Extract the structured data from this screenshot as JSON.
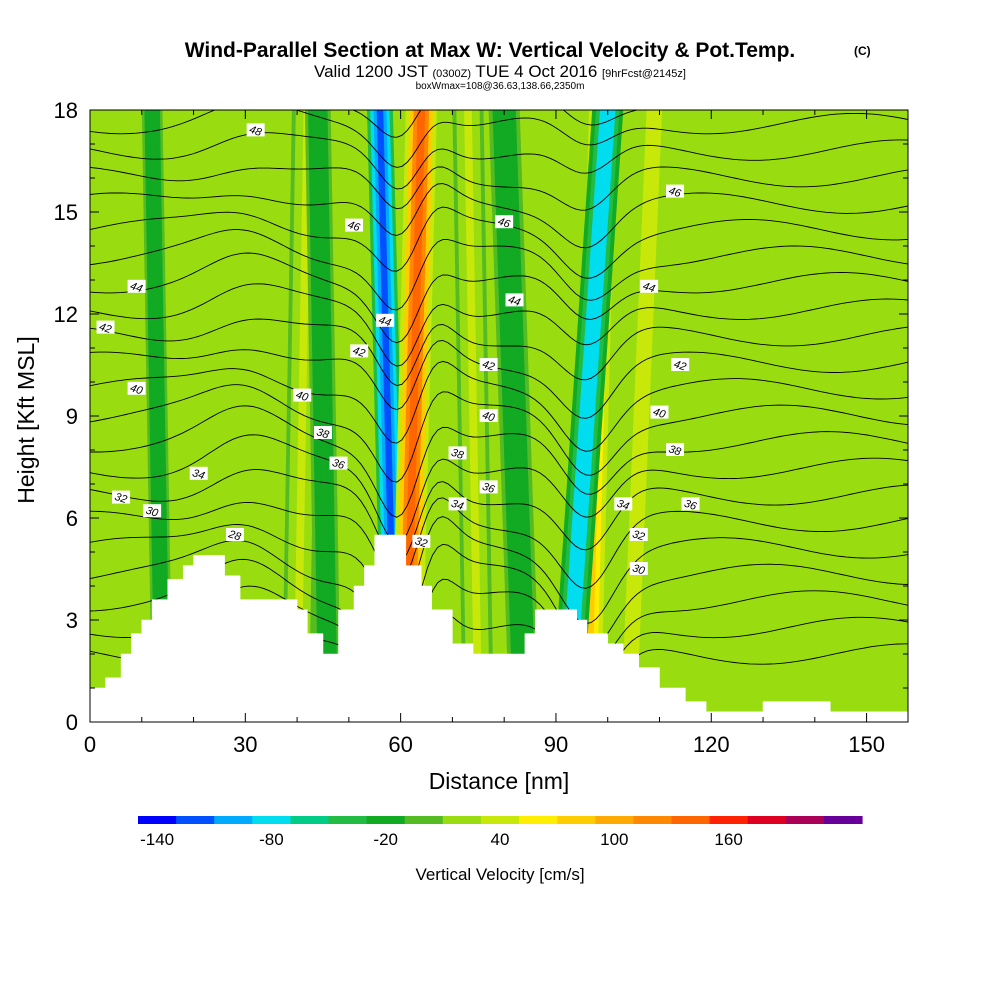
{
  "chart_data": {
    "type": "heatmap",
    "title": "Wind-Parallel Section at Max W: Vertical Velocity & Pot.Temp.",
    "title_mark": "(C)",
    "subtitle_parts": [
      "Valid 1200 JST",
      "(0300Z)",
      "TUE 4 Oct 2016",
      "[9hrFcst@2145z]"
    ],
    "subtitle2": "boxWmax=108@36.63,138.66,2350m",
    "xlabel": "Distance [nm]",
    "ylabel": "Height [Kft MSL]",
    "xlim": [
      0,
      158
    ],
    "ylim": [
      0,
      18
    ],
    "x_ticks": [
      0,
      30,
      60,
      90,
      120,
      150
    ],
    "x_tick_labels": [
      "0",
      "30",
      "60",
      "90",
      "120",
      "150"
    ],
    "y_ticks": [
      0,
      3,
      6,
      9,
      12,
      15,
      18
    ],
    "y_tick_labels": [
      "0",
      "3",
      "6",
      "9",
      "12",
      "15",
      "18"
    ],
    "colorbar": {
      "title": "Vertical Velocity [cm/s]",
      "min": -150,
      "step": 20,
      "colors": [
        "#0000ff",
        "#0050ff",
        "#00aaff",
        "#00ddee",
        "#00cc88",
        "#22bb44",
        "#11aa22",
        "#55bb22",
        "#99dd11",
        "#c8e80a",
        "#ffee00",
        "#ffcc00",
        "#ffaa00",
        "#ff8800",
        "#ff6600",
        "#ff2200",
        "#dd0022",
        "#aa0055",
        "#660099"
      ],
      "tick_values": [
        -140,
        -80,
        -20,
        40,
        100,
        160
      ],
      "tick_labels": [
        "-140",
        "-80",
        "-20",
        "40",
        "100",
        "160"
      ]
    },
    "vertical_velocity_bands": [
      {
        "x_bottom": 59,
        "x_top": 56,
        "width": 2.5,
        "value": -130
      },
      {
        "x_bottom": 61,
        "x_top": 64,
        "width": 3,
        "value": 140
      },
      {
        "x_bottom": 96,
        "x_top": 99,
        "width": 3.5,
        "value": 70
      },
      {
        "x_bottom": 92,
        "x_top": 100,
        "width": 3,
        "value": -90
      },
      {
        "x_bottom": 40,
        "x_top": 42,
        "width": 3,
        "value": 30
      },
      {
        "x_bottom": 46,
        "x_top": 44,
        "width": 2.5,
        "value": -25
      },
      {
        "x_bottom": 14,
        "x_top": 12,
        "width": 2,
        "value": -25
      },
      {
        "x_bottom": 75,
        "x_top": 73,
        "width": 3,
        "value": 30
      },
      {
        "x_bottom": 104,
        "x_top": 109,
        "width": 3,
        "value": 45
      },
      {
        "x_bottom": 84,
        "x_top": 80,
        "width": 3,
        "value": -20
      }
    ],
    "terrain": [
      [
        0,
        1.0
      ],
      [
        3,
        1.0
      ],
      [
        3,
        1.3
      ],
      [
        6,
        1.3
      ],
      [
        6,
        2.0
      ],
      [
        8,
        2.0
      ],
      [
        8,
        2.6
      ],
      [
        10,
        2.6
      ],
      [
        10,
        3.0
      ],
      [
        12,
        3.0
      ],
      [
        12,
        3.6
      ],
      [
        15,
        3.6
      ],
      [
        15,
        4.2
      ],
      [
        18,
        4.2
      ],
      [
        18,
        4.6
      ],
      [
        20,
        4.6
      ],
      [
        20,
        4.9
      ],
      [
        26,
        4.9
      ],
      [
        26,
        4.3
      ],
      [
        29,
        4.3
      ],
      [
        29,
        3.6
      ],
      [
        40,
        3.6
      ],
      [
        40,
        3.3
      ],
      [
        42,
        3.3
      ],
      [
        42,
        2.6
      ],
      [
        45,
        2.6
      ],
      [
        45,
        2.0
      ],
      [
        48,
        2.0
      ],
      [
        48,
        3.3
      ],
      [
        51,
        3.3
      ],
      [
        51,
        4.0
      ],
      [
        53,
        4.0
      ],
      [
        53,
        4.6
      ],
      [
        55,
        4.6
      ],
      [
        55,
        5.5
      ],
      [
        61,
        5.5
      ],
      [
        61,
        4.6
      ],
      [
        64,
        4.6
      ],
      [
        64,
        4.0
      ],
      [
        66,
        4.0
      ],
      [
        66,
        3.3
      ],
      [
        70,
        3.3
      ],
      [
        70,
        2.3
      ],
      [
        74,
        2.3
      ],
      [
        74,
        2.0
      ],
      [
        84,
        2.0
      ],
      [
        84,
        2.6
      ],
      [
        86,
        2.6
      ],
      [
        86,
        3.3
      ],
      [
        94,
        3.3
      ],
      [
        94,
        3.0
      ],
      [
        96,
        3.0
      ],
      [
        96,
        2.6
      ],
      [
        100,
        2.6
      ],
      [
        100,
        2.3
      ],
      [
        103,
        2.3
      ],
      [
        103,
        2.0
      ],
      [
        106,
        2.0
      ],
      [
        106,
        1.6
      ],
      [
        110,
        1.6
      ],
      [
        110,
        1.0
      ],
      [
        115,
        1.0
      ],
      [
        115,
        0.6
      ],
      [
        119,
        0.6
      ],
      [
        119,
        0.3
      ],
      [
        130,
        0.3
      ],
      [
        130,
        0.6
      ],
      [
        143,
        0.6
      ],
      [
        143,
        0.3
      ],
      [
        158,
        0.3
      ]
    ],
    "isentropes": [
      28,
      29,
      30,
      31,
      32,
      33,
      34,
      35,
      36,
      37,
      38,
      39,
      40,
      41,
      42,
      43,
      44,
      45,
      46,
      47,
      48,
      49
    ],
    "contour_labels": [
      {
        "text": "48",
        "x": 32,
        "y": 17.4
      },
      {
        "text": "46",
        "x": 51,
        "y": 14.6
      },
      {
        "text": "44",
        "x": 9,
        "y": 12.8
      },
      {
        "text": "42",
        "x": 3,
        "y": 11.6
      },
      {
        "text": "44",
        "x": 57,
        "y": 11.8
      },
      {
        "text": "42",
        "x": 52,
        "y": 10.9
      },
      {
        "text": "40",
        "x": 9,
        "y": 9.8
      },
      {
        "text": "40",
        "x": 41,
        "y": 9.6
      },
      {
        "text": "38",
        "x": 45,
        "y": 8.5
      },
      {
        "text": "36",
        "x": 48,
        "y": 7.6
      },
      {
        "text": "34",
        "x": 21,
        "y": 7.3
      },
      {
        "text": "32",
        "x": 6,
        "y": 6.6
      },
      {
        "text": "30",
        "x": 12,
        "y": 6.2
      },
      {
        "text": "28",
        "x": 28,
        "y": 5.5
      },
      {
        "text": "46",
        "x": 80,
        "y": 14.7
      },
      {
        "text": "44",
        "x": 82,
        "y": 12.4
      },
      {
        "text": "42",
        "x": 77,
        "y": 10.5
      },
      {
        "text": "40",
        "x": 77,
        "y": 9.0
      },
      {
        "text": "38",
        "x": 71,
        "y": 7.9
      },
      {
        "text": "36",
        "x": 77,
        "y": 6.9
      },
      {
        "text": "34",
        "x": 71,
        "y": 6.4
      },
      {
        "text": "32",
        "x": 64,
        "y": 5.3
      },
      {
        "text": "46",
        "x": 113,
        "y": 15.6
      },
      {
        "text": "44",
        "x": 108,
        "y": 12.8
      },
      {
        "text": "42",
        "x": 114,
        "y": 10.5
      },
      {
        "text": "40",
        "x": 110,
        "y": 9.1
      },
      {
        "text": "38",
        "x": 113,
        "y": 8.0
      },
      {
        "text": "36",
        "x": 116,
        "y": 6.4
      },
      {
        "text": "34",
        "x": 103,
        "y": 6.4
      },
      {
        "text": "32",
        "x": 106,
        "y": 5.5
      },
      {
        "text": "30",
        "x": 106,
        "y": 4.5
      }
    ]
  }
}
